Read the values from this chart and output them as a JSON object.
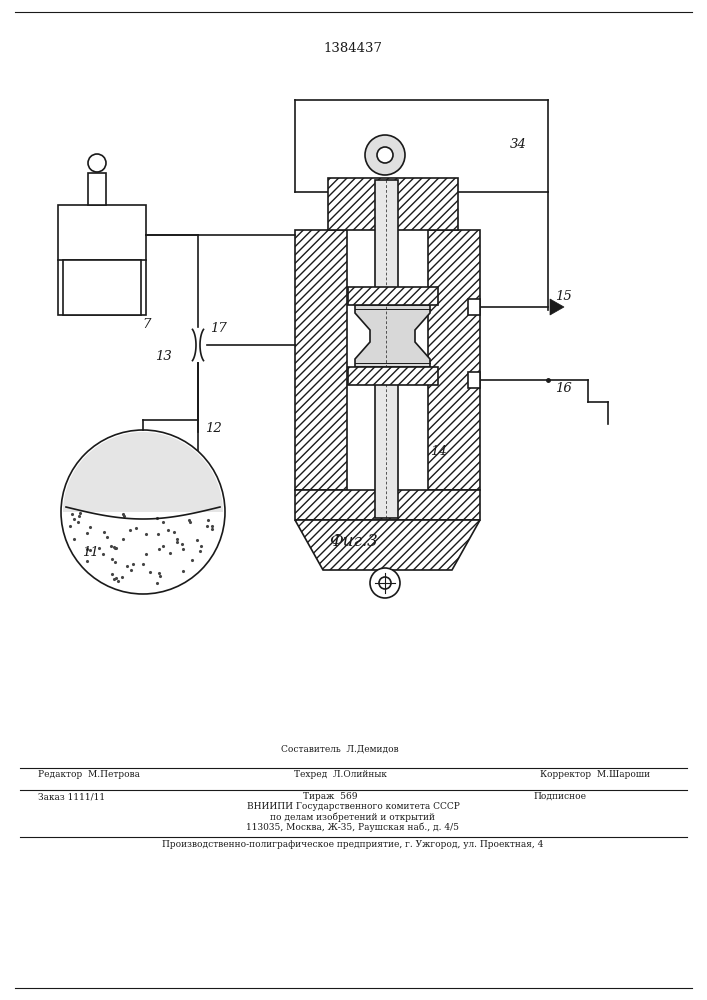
{
  "patent_number": "1384437",
  "figure_label": "Фиг.3",
  "bg_color": "#ffffff",
  "line_color": "#1a1a1a",
  "footer_redaktor": "Редактор  М.Петрова",
  "footer_sostavitel": "Составитель  Л.Демидов",
  "footer_tehred": "Техред  Л.Олийнык",
  "footer_korrektor": "Корректор  М.Шароши",
  "footer_zakaz": "Заказ 1111/11",
  "footer_tirazh": "Тираж  569",
  "footer_podpisnoe": "Подписное",
  "footer_vniiipi1": "ВНИИПИ Государственного комитета СССР",
  "footer_vniiipi2": "по делам изобретений и открытий",
  "footer_vniiipi3": "113035, Москва, Ж-35, Раушская наб., д. 4/5",
  "footer_bottom": "Производственно-полиграфическое предприятие, г. Ужгород, ул. Проектная, 4"
}
